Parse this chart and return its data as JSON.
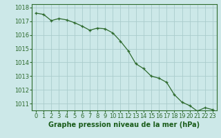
{
  "x": [
    0,
    1,
    2,
    3,
    4,
    5,
    6,
    7,
    8,
    9,
    10,
    11,
    12,
    13,
    14,
    15,
    16,
    17,
    18,
    19,
    20,
    21,
    22,
    23
  ],
  "y": [
    1017.6,
    1017.5,
    1017.05,
    1017.2,
    1017.1,
    1016.9,
    1016.65,
    1016.35,
    1016.5,
    1016.45,
    1016.15,
    1015.55,
    1014.85,
    1013.9,
    1013.55,
    1013.0,
    1012.85,
    1012.55,
    1011.65,
    1011.1,
    1010.85,
    1010.45,
    1010.7,
    1010.55
  ],
  "ylim": [
    1010.5,
    1018.25
  ],
  "yticks": [
    1011,
    1012,
    1013,
    1014,
    1015,
    1016,
    1017,
    1018
  ],
  "xticks": [
    0,
    1,
    2,
    3,
    4,
    5,
    6,
    7,
    8,
    9,
    10,
    11,
    12,
    13,
    14,
    15,
    16,
    17,
    18,
    19,
    20,
    21,
    22,
    23
  ],
  "line_color": "#2d6a2d",
  "marker_color": "#2d6a2d",
  "bg_color": "#cce8e8",
  "grid_color": "#aacccc",
  "xlabel": "Graphe pression niveau de la mer (hPa)",
  "xlabel_color": "#1a5c1a",
  "xlabel_fontsize": 7.0,
  "tick_color": "#2d6a2d",
  "tick_fontsize": 6.0,
  "spine_color": "#2d6a2d"
}
